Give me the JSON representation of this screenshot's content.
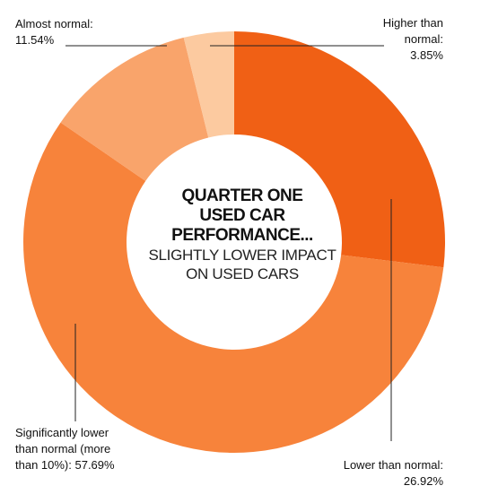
{
  "chart_data": {
    "type": "pie",
    "style": "donut",
    "center_title": [
      "QUARTER ONE",
      "USED CAR",
      "PERFORMANCE..."
    ],
    "center_subtitle": [
      "SLIGHTLY LOWER IMPACT",
      "ON USED CARS"
    ],
    "slices": [
      {
        "label_lines": [
          "Lower than normal:",
          "26.92%"
        ],
        "category": "Lower than normal",
        "value": 26.92,
        "color": "#f06015"
      },
      {
        "label_lines": [
          "Significantly lower",
          "than normal (more",
          "than 10%): 57.69%"
        ],
        "category": "Significantly lower than normal (more than 10%)",
        "value": 57.69,
        "color": "#f7833b"
      },
      {
        "label_lines": [
          "Almost normal:",
          "11.54%"
        ],
        "category": "Almost normal",
        "value": 11.54,
        "color": "#f9a46b"
      },
      {
        "label_lines": [
          "Higher than",
          "normal:",
          "3.85%"
        ],
        "category": "Higher than normal",
        "value": 3.85,
        "color": "#fccaa0"
      }
    ]
  }
}
